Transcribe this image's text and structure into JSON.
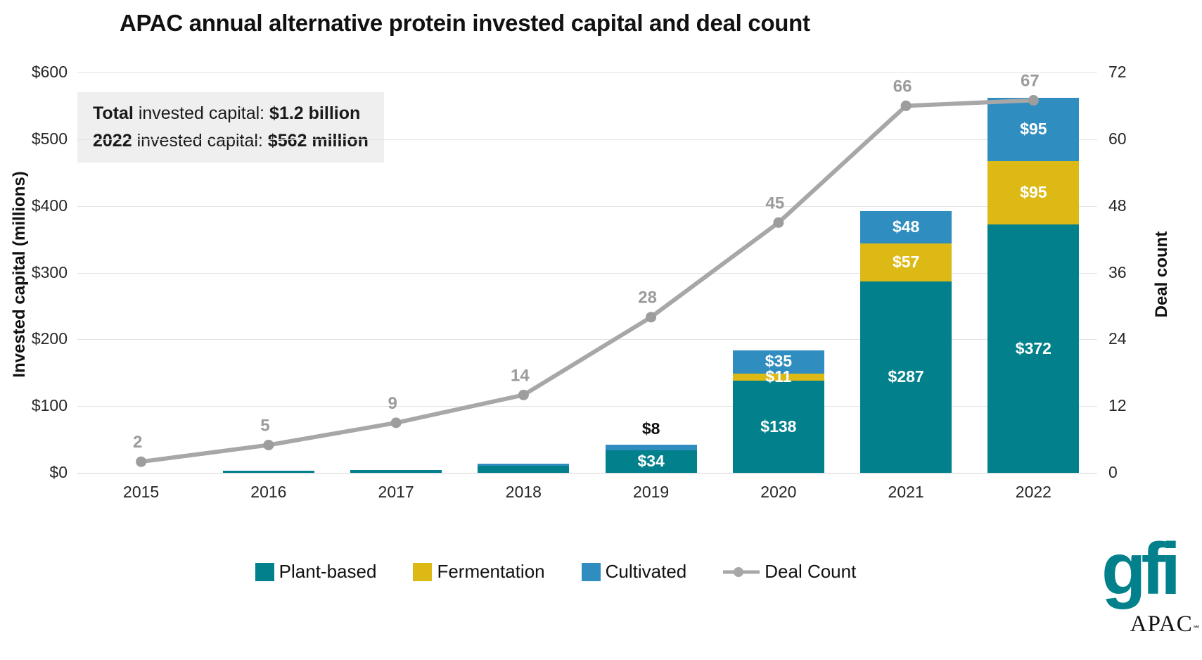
{
  "title": "APAC annual alternative protein invested capital and deal count",
  "summary": {
    "line1": [
      {
        "t": "Total",
        "b": true
      },
      {
        "t": " invested capital: ",
        "b": false
      },
      {
        "t": "$1.2 billion",
        "b": true
      }
    ],
    "line2": [
      {
        "t": "2022",
        "b": true
      },
      {
        "t": " invested capital: ",
        "b": false
      },
      {
        "t": "$562 million",
        "b": true
      }
    ]
  },
  "chart_data": {
    "type": "bar",
    "subtype": "stacked-bars-with-line-overlay",
    "title": "APAC annual alternative protein invested capital and deal count",
    "categories": [
      "2015",
      "2016",
      "2017",
      "2018",
      "2019",
      "2020",
      "2021",
      "2022"
    ],
    "series": [
      {
        "name": "Plant-based",
        "color": "#02808c",
        "values": [
          0,
          3,
          4,
          11,
          34,
          138,
          287,
          372
        ],
        "labels": [
          "",
          "",
          "",
          "",
          "$34",
          "$138",
          "$287",
          "$372"
        ],
        "label_pos": [
          "",
          "",
          "",
          "",
          "inside",
          "inside",
          "inside",
          "inside"
        ]
      },
      {
        "name": "Fermentation",
        "color": "#ddb916",
        "values": [
          0,
          0,
          0,
          0,
          0,
          11,
          57,
          95
        ],
        "labels": [
          "",
          "",
          "",
          "",
          "",
          "$11",
          "$57",
          "$95"
        ],
        "label_pos": [
          "",
          "",
          "",
          "",
          "",
          "inside",
          "inside",
          "inside"
        ]
      },
      {
        "name": "Cultivated",
        "color": "#2f8dc0",
        "values": [
          0,
          0,
          0,
          3,
          8,
          35,
          48,
          95
        ],
        "labels": [
          "",
          "",
          "",
          "",
          "$8",
          "$35",
          "$48",
          "$95"
        ],
        "label_pos": [
          "",
          "",
          "",
          "",
          "above",
          "inside",
          "inside",
          "inside"
        ]
      }
    ],
    "line_series": {
      "name": "Deal Count",
      "color": "#a7a7a7",
      "point_color": "#9d9d9d",
      "label_color": "#9b9b9b",
      "values": [
        2,
        5,
        9,
        14,
        28,
        45,
        66,
        67
      ]
    },
    "left_axis": {
      "label": "Invested capital (millions)",
      "max": 600,
      "ticks": [
        0,
        100,
        200,
        300,
        400,
        500,
        600
      ],
      "tick_labels": [
        "$0",
        "$100",
        "$200",
        "$300",
        "$400",
        "$500",
        "$600"
      ]
    },
    "right_axis": {
      "label": "Deal count",
      "max": 72,
      "ticks": [
        0,
        12,
        24,
        36,
        48,
        60,
        72
      ],
      "tick_labels": [
        "0",
        "12",
        "24",
        "36",
        "48",
        "60",
        "72"
      ]
    },
    "grid": "horizontal",
    "legend_position": "bottom"
  },
  "legend": {
    "items": [
      {
        "label": "Plant-based",
        "color": "#02808c",
        "type": "square"
      },
      {
        "label": "Fermentation",
        "color": "#ddb916",
        "type": "square"
      },
      {
        "label": "Cultivated",
        "color": "#2f8dc0",
        "type": "square"
      },
      {
        "label": "Deal Count",
        "color": "#a7a7a7",
        "type": "line"
      }
    ]
  },
  "logo": {
    "brand": "gfi",
    "region": "APAC",
    "trademark": "℠"
  }
}
